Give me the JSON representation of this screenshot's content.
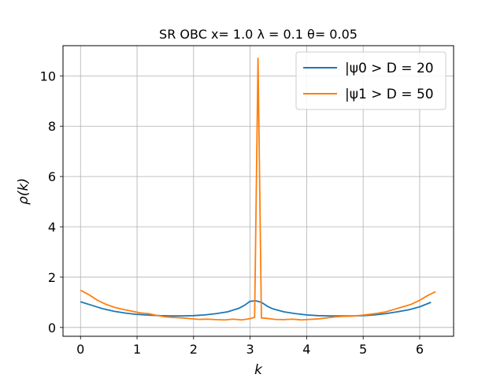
{
  "chart_data": {
    "type": "line",
    "title": "SR OBC x= 1.0 λ = 0.1 θ= 0.05",
    "xlabel": "k",
    "ylabel": "ρ(k)",
    "xlim": [
      -0.31,
      6.6
    ],
    "ylim": [
      -0.35,
      11.2
    ],
    "xticks": [
      0,
      1,
      2,
      3,
      4,
      5,
      6
    ],
    "yticks": [
      0,
      2,
      4,
      6,
      8,
      10
    ],
    "grid": true,
    "legend_position": "top-right",
    "series": [
      {
        "name": "|ψ0 > D = 20",
        "color": "#1f77b4",
        "x": [
          0.0,
          0.2,
          0.4,
          0.6,
          0.8,
          1.0,
          1.2,
          1.4,
          1.6,
          1.8,
          2.0,
          2.2,
          2.4,
          2.6,
          2.8,
          2.9,
          3.0,
          3.1,
          3.2,
          3.3,
          3.4,
          3.6,
          3.8,
          4.0,
          4.2,
          4.4,
          4.6,
          4.8,
          5.0,
          5.2,
          5.4,
          5.6,
          5.8,
          6.0,
          6.2
        ],
        "y": [
          1.02,
          0.88,
          0.74,
          0.64,
          0.57,
          0.52,
          0.49,
          0.47,
          0.46,
          0.46,
          0.47,
          0.5,
          0.55,
          0.62,
          0.76,
          0.88,
          1.04,
          1.06,
          1.0,
          0.85,
          0.74,
          0.62,
          0.55,
          0.5,
          0.47,
          0.46,
          0.46,
          0.46,
          0.47,
          0.5,
          0.55,
          0.62,
          0.7,
          0.82,
          1.0
        ]
      },
      {
        "name": "|ψ1 > D = 50",
        "color": "#ff7f0e",
        "x": [
          0.0,
          0.15,
          0.3,
          0.45,
          0.6,
          0.75,
          0.9,
          1.05,
          1.2,
          1.35,
          1.5,
          1.65,
          1.8,
          1.95,
          2.1,
          2.25,
          2.4,
          2.55,
          2.7,
          2.85,
          3.0,
          3.08,
          3.14,
          3.2,
          3.3,
          3.45,
          3.6,
          3.75,
          3.9,
          4.05,
          4.2,
          4.35,
          4.5,
          4.65,
          4.8,
          4.95,
          5.1,
          5.25,
          5.4,
          5.55,
          5.7,
          5.85,
          6.0,
          6.15,
          6.28
        ],
        "y": [
          1.48,
          1.3,
          1.08,
          0.92,
          0.8,
          0.72,
          0.65,
          0.58,
          0.55,
          0.48,
          0.42,
          0.4,
          0.38,
          0.35,
          0.32,
          0.33,
          0.31,
          0.3,
          0.33,
          0.3,
          0.35,
          0.4,
          10.7,
          0.38,
          0.36,
          0.32,
          0.31,
          0.33,
          0.3,
          0.32,
          0.34,
          0.38,
          0.42,
          0.44,
          0.45,
          0.48,
          0.52,
          0.56,
          0.62,
          0.72,
          0.82,
          0.92,
          1.08,
          1.28,
          1.42
        ]
      }
    ]
  }
}
